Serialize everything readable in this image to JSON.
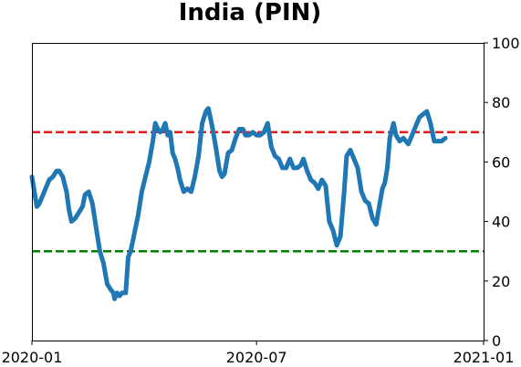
{
  "chart_data": {
    "type": "line",
    "title": "India (PIN)",
    "xlabel": "",
    "ylabel": "",
    "x_range": [
      "2020-01-01",
      "2021-01-01"
    ],
    "ylim": [
      0,
      100
    ],
    "y_axis_side": "right",
    "grid": false,
    "x_ticks": [
      {
        "date": "2020-01-01",
        "label": "2020-01"
      },
      {
        "date": "2020-07-01",
        "label": "2020-07"
      },
      {
        "date": "2021-01-01",
        "label": "2021-01"
      }
    ],
    "y_ticks": [
      0,
      20,
      40,
      60,
      80,
      100
    ],
    "reference_lines": [
      {
        "value": 70,
        "color": "#e41a1c",
        "style": "dashed"
      },
      {
        "value": 30,
        "color": "#008000",
        "style": "dashed"
      }
    ],
    "series": [
      {
        "color": "#1f77b4",
        "points": [
          [
            "2020-01-01",
            55
          ],
          [
            "2020-01-03",
            50
          ],
          [
            "2020-01-05",
            45
          ],
          [
            "2020-01-07",
            46
          ],
          [
            "2020-01-09",
            48
          ],
          [
            "2020-01-12",
            51
          ],
          [
            "2020-01-15",
            54
          ],
          [
            "2020-01-18",
            55
          ],
          [
            "2020-01-21",
            57
          ],
          [
            "2020-01-23",
            57
          ],
          [
            "2020-01-26",
            55
          ],
          [
            "2020-01-29",
            50
          ],
          [
            "2020-01-31",
            44
          ],
          [
            "2020-02-02",
            40
          ],
          [
            "2020-02-05",
            41
          ],
          [
            "2020-02-08",
            43
          ],
          [
            "2020-02-11",
            45
          ],
          [
            "2020-02-13",
            49
          ],
          [
            "2020-02-16",
            50
          ],
          [
            "2020-02-19",
            46
          ],
          [
            "2020-02-22",
            38
          ],
          [
            "2020-02-25",
            30
          ],
          [
            "2020-02-28",
            26
          ],
          [
            "2020-03-02",
            19
          ],
          [
            "2020-03-05",
            17
          ],
          [
            "2020-03-07",
            16
          ],
          [
            "2020-03-08",
            14
          ],
          [
            "2020-03-10",
            16
          ],
          [
            "2020-03-12",
            15
          ],
          [
            "2020-03-14",
            16
          ],
          [
            "2020-03-17",
            16
          ],
          [
            "2020-03-19",
            28
          ],
          [
            "2020-03-21",
            30
          ],
          [
            "2020-03-24",
            36
          ],
          [
            "2020-03-27",
            42
          ],
          [
            "2020-03-30",
            50
          ],
          [
            "2020-04-02",
            55
          ],
          [
            "2020-04-05",
            60
          ],
          [
            "2020-04-08",
            67
          ],
          [
            "2020-04-10",
            73
          ],
          [
            "2020-04-12",
            71
          ],
          [
            "2020-04-14",
            70
          ],
          [
            "2020-04-16",
            71
          ],
          [
            "2020-04-18",
            73
          ],
          [
            "2020-04-20",
            69
          ],
          [
            "2020-04-22",
            70
          ],
          [
            "2020-04-24",
            63
          ],
          [
            "2020-04-26",
            61
          ],
          [
            "2020-04-28",
            58
          ],
          [
            "2020-04-30",
            54
          ],
          [
            "2020-05-03",
            50
          ],
          [
            "2020-05-06",
            51
          ],
          [
            "2020-05-09",
            50
          ],
          [
            "2020-05-12",
            55
          ],
          [
            "2020-05-15",
            62
          ],
          [
            "2020-05-18",
            73
          ],
          [
            "2020-05-21",
            77
          ],
          [
            "2020-05-23",
            78
          ],
          [
            "2020-05-26",
            72
          ],
          [
            "2020-05-29",
            65
          ],
          [
            "2020-06-01",
            57
          ],
          [
            "2020-06-03",
            55
          ],
          [
            "2020-06-05",
            56
          ],
          [
            "2020-06-08",
            63
          ],
          [
            "2020-06-11",
            64
          ],
          [
            "2020-06-14",
            68
          ],
          [
            "2020-06-17",
            71
          ],
          [
            "2020-06-20",
            71
          ],
          [
            "2020-06-22",
            69
          ],
          [
            "2020-06-25",
            69
          ],
          [
            "2020-06-28",
            70
          ],
          [
            "2020-07-01",
            69
          ],
          [
            "2020-07-04",
            69
          ],
          [
            "2020-07-07",
            70
          ],
          [
            "2020-07-10",
            73
          ],
          [
            "2020-07-13",
            65
          ],
          [
            "2020-07-16",
            62
          ],
          [
            "2020-07-19",
            61
          ],
          [
            "2020-07-22",
            58
          ],
          [
            "2020-07-25",
            58
          ],
          [
            "2020-07-28",
            61
          ],
          [
            "2020-07-31",
            58
          ],
          [
            "2020-08-03",
            58
          ],
          [
            "2020-08-06",
            59
          ],
          [
            "2020-08-08",
            61
          ],
          [
            "2020-08-11",
            57
          ],
          [
            "2020-08-14",
            54
          ],
          [
            "2020-08-17",
            53
          ],
          [
            "2020-08-20",
            51
          ],
          [
            "2020-08-23",
            54
          ],
          [
            "2020-08-26",
            52
          ],
          [
            "2020-08-29",
            40
          ],
          [
            "2020-09-01",
            37
          ],
          [
            "2020-09-04",
            32
          ],
          [
            "2020-09-07",
            35
          ],
          [
            "2020-09-10",
            50
          ],
          [
            "2020-09-12",
            62
          ],
          [
            "2020-09-15",
            64
          ],
          [
            "2020-09-18",
            61
          ],
          [
            "2020-09-21",
            58
          ],
          [
            "2020-09-24",
            50
          ],
          [
            "2020-09-27",
            47
          ],
          [
            "2020-09-30",
            46
          ],
          [
            "2020-10-03",
            41
          ],
          [
            "2020-10-06",
            39
          ],
          [
            "2020-10-08",
            44
          ],
          [
            "2020-10-11",
            51
          ],
          [
            "2020-10-13",
            53
          ],
          [
            "2020-10-15",
            58
          ],
          [
            "2020-10-17",
            68
          ],
          [
            "2020-10-20",
            73
          ],
          [
            "2020-10-22",
            69
          ],
          [
            "2020-10-25",
            67
          ],
          [
            "2020-10-28",
            68
          ],
          [
            "2020-11-01",
            66
          ],
          [
            "2020-11-04",
            69
          ],
          [
            "2020-11-07",
            72
          ],
          [
            "2020-11-10",
            75
          ],
          [
            "2020-11-13",
            76
          ],
          [
            "2020-11-16",
            77
          ],
          [
            "2020-11-19",
            73
          ],
          [
            "2020-11-22",
            67
          ],
          [
            "2020-11-25",
            67
          ],
          [
            "2020-11-28",
            67
          ],
          [
            "2020-12-01",
            68
          ]
        ]
      }
    ]
  }
}
